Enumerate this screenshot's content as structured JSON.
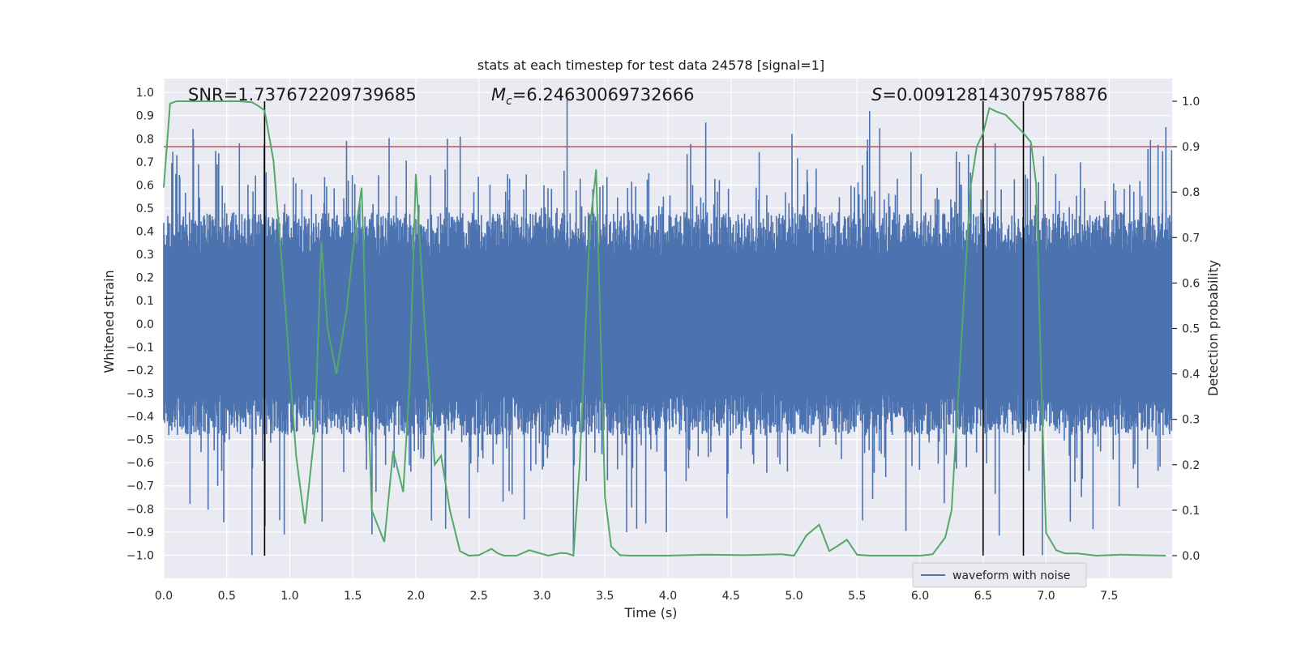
{
  "chart_data": {
    "type": "line",
    "title": "stats at each timestep for test data 24578 [signal=1]",
    "xlabel": "Time (s)",
    "ylabel_left": "Whitened strain",
    "ylabel_right": "Detection probability",
    "xlim": [
      0,
      8
    ],
    "ylim_left": [
      -1.1,
      1.06
    ],
    "ylim_right": [
      -0.05,
      1.05
    ],
    "x_ticks": [
      0.0,
      0.5,
      1.0,
      1.5,
      2.0,
      2.5,
      3.0,
      3.5,
      4.0,
      4.5,
      5.0,
      5.5,
      6.0,
      6.5,
      7.0,
      7.5
    ],
    "x_tick_labels": [
      "0.0",
      "0.5",
      "1.0",
      "1.5",
      "2.0",
      "2.5",
      "3.0",
      "3.5",
      "4.0",
      "4.5",
      "5.0",
      "5.5",
      "6.0",
      "6.5",
      "7.0",
      "7.5"
    ],
    "y_left_ticks": [
      1.0,
      0.9,
      0.8,
      0.7,
      0.6,
      0.5,
      0.4,
      0.3,
      0.2,
      0.1,
      0.0,
      -0.1,
      -0.2,
      -0.3,
      -0.4,
      -0.5,
      -0.6,
      -0.7,
      -0.8,
      -0.9,
      -1.0
    ],
    "y_left_tick_labels": [
      "1.0",
      "0.9",
      "0.8",
      "0.7",
      "0.6",
      "0.5",
      "0.4",
      "0.3",
      "0.2",
      "0.1",
      "0.0",
      "−0.1",
      "−0.2",
      "−0.3",
      "−0.4",
      "−0.5",
      "−0.6",
      "−0.7",
      "−0.8",
      "−0.9",
      "−1.0"
    ],
    "y_right_ticks": [
      1.0,
      0.9,
      0.8,
      0.7,
      0.6,
      0.5,
      0.4,
      0.3,
      0.2,
      0.1,
      0.0
    ],
    "y_right_tick_labels": [
      "1.0",
      "0.9",
      "0.8",
      "0.7",
      "0.6",
      "0.5",
      "0.4",
      "0.3",
      "0.2",
      "0.1",
      "0.0"
    ],
    "annotations": {
      "snr": "SNR=1.737672209739685",
      "mc_symbol": "M",
      "mc_sub": "c",
      "mc_value": "=6.24630069732666",
      "s_symbol": "S",
      "s_value": "=0.009128143079578876"
    },
    "legend": {
      "label": "waveform with noise",
      "location": "lower-right"
    },
    "threshold_probability": 0.9,
    "event_markers_s": [
      0.8,
      6.5,
      6.82
    ],
    "waveform_envelope": {
      "typical_amplitude": 0.42,
      "max_peak": 0.97,
      "min_peak": -1.0,
      "sample_count": 2000
    },
    "series": [
      {
        "name": "waveform with noise",
        "axis": "left",
        "style": "filled band"
      },
      {
        "name": "detection probability",
        "axis": "right",
        "x": [
          0.0,
          0.05,
          0.1,
          0.2,
          0.3,
          0.4,
          0.5,
          0.6,
          0.7,
          0.75,
          0.8,
          0.87,
          0.95,
          1.05,
          1.12,
          1.2,
          1.25,
          1.3,
          1.37,
          1.45,
          1.5,
          1.57,
          1.65,
          1.75,
          1.82,
          1.9,
          1.95,
          2.0,
          2.07,
          2.15,
          2.2,
          2.27,
          2.35,
          2.42,
          2.5,
          2.6,
          2.65,
          2.7,
          2.8,
          2.9,
          2.95,
          3.05,
          3.15,
          3.2,
          3.25,
          3.3,
          3.38,
          3.43,
          3.5,
          3.55,
          3.62,
          3.7,
          3.8,
          4.0,
          4.3,
          4.6,
          4.9,
          5.0,
          5.1,
          5.2,
          5.28,
          5.35,
          5.42,
          5.5,
          5.6,
          5.8,
          6.0,
          6.1,
          6.2,
          6.25,
          6.3,
          6.35,
          6.4,
          6.45,
          6.5,
          6.55,
          6.6,
          6.68,
          6.75,
          6.82,
          6.88,
          6.92,
          6.97,
          7.0,
          7.08,
          7.15,
          7.25,
          7.4,
          7.6,
          7.95
        ],
        "values": [
          0.81,
          0.995,
          1.0,
          1.0,
          1.0,
          1.0,
          1.0,
          1.0,
          0.998,
          0.99,
          0.98,
          0.87,
          0.6,
          0.22,
          0.07,
          0.28,
          0.69,
          0.5,
          0.4,
          0.54,
          0.67,
          0.81,
          0.1,
          0.03,
          0.23,
          0.14,
          0.38,
          0.84,
          0.51,
          0.2,
          0.22,
          0.1,
          0.01,
          0.0,
          0.001,
          0.015,
          0.005,
          0.0,
          0.0,
          0.012,
          0.008,
          0.0,
          0.006,
          0.005,
          0.0,
          0.2,
          0.72,
          0.85,
          0.13,
          0.02,
          0.001,
          0.0,
          0.0,
          0.0,
          0.002,
          0.001,
          0.003,
          0.0,
          0.045,
          0.068,
          0.01,
          0.022,
          0.035,
          0.002,
          0.0,
          0.0,
          0.0,
          0.003,
          0.04,
          0.1,
          0.34,
          0.58,
          0.81,
          0.9,
          0.93,
          0.985,
          0.978,
          0.97,
          0.95,
          0.93,
          0.91,
          0.82,
          0.3,
          0.05,
          0.012,
          0.005,
          0.005,
          0.0,
          0.002,
          0.0
        ]
      }
    ]
  },
  "colors": {
    "plot_background": "#eaeaf2",
    "grid": "#ffffff",
    "waveform": "#4c72b0",
    "probability_line": "#55a868",
    "threshold_line": "#c44e52",
    "marker_line": "#000000",
    "text": "#262626"
  }
}
